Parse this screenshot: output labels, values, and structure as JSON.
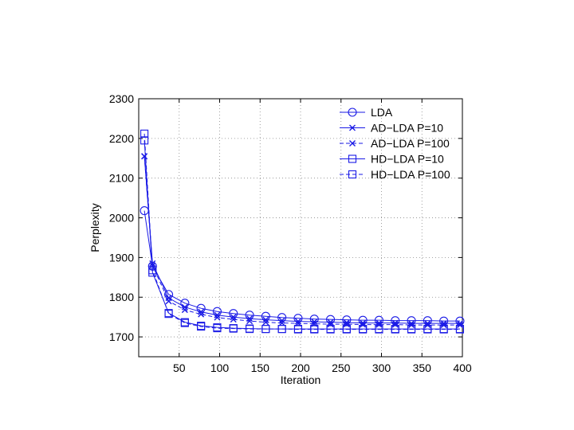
{
  "chart_data": {
    "type": "line",
    "title": "",
    "xlabel": "Iteration",
    "ylabel": "Perplexity",
    "xlim": [
      0,
      400
    ],
    "ylim": [
      1650,
      2300
    ],
    "x_ticks": [
      50,
      100,
      150,
      200,
      250,
      300,
      350,
      400
    ],
    "y_ticks": [
      1700,
      1800,
      1900,
      2000,
      2100,
      2200,
      2300
    ],
    "grid": true,
    "legend_position": "top-right",
    "x": [
      7,
      17,
      37,
      57,
      77,
      97,
      117,
      137,
      157,
      177,
      197,
      217,
      237,
      257,
      277,
      297,
      317,
      337,
      357,
      377,
      397
    ],
    "series": [
      {
        "name": "LDA",
        "line": "solid",
        "marker": "circle",
        "values": [
          2018,
          1878,
          1807,
          1785,
          1772,
          1764,
          1759,
          1755,
          1752,
          1749,
          1747,
          1745,
          1744,
          1743,
          1742,
          1742,
          1741,
          1741,
          1741,
          1740,
          1740
        ]
      },
      {
        "name": "AD−LDA P=10",
        "line": "solid",
        "marker": "x",
        "values": [
          2155,
          1885,
          1798,
          1775,
          1763,
          1755,
          1750,
          1746,
          1743,
          1741,
          1739,
          1738,
          1737,
          1736,
          1735,
          1735,
          1735,
          1734,
          1734,
          1734,
          1734
        ]
      },
      {
        "name": "AD−LDA P=100",
        "line": "dashed",
        "marker": "x",
        "values": [
          2155,
          1880,
          1790,
          1768,
          1757,
          1749,
          1744,
          1740,
          1737,
          1735,
          1734,
          1733,
          1732,
          1732,
          1731,
          1731,
          1731,
          1730,
          1730,
          1730,
          1730
        ]
      },
      {
        "name": "HD−LDA P=10",
        "line": "solid",
        "marker": "square",
        "values": [
          2195,
          1862,
          1760,
          1737,
          1728,
          1724,
          1722,
          1721,
          1720,
          1720,
          1720,
          1720,
          1720,
          1720,
          1720,
          1720,
          1720,
          1720,
          1720,
          1720,
          1720
        ]
      },
      {
        "name": "HD−LDA P=100",
        "line": "dashed",
        "marker": "square",
        "values": [
          2212,
          1868,
          1758,
          1735,
          1726,
          1722,
          1721,
          1720,
          1720,
          1720,
          1719,
          1719,
          1719,
          1719,
          1719,
          1719,
          1719,
          1719,
          1719,
          1719,
          1719
        ]
      }
    ],
    "colors": {
      "series": "#1a1ae6",
      "axis": "#000000",
      "grid": "#888888"
    }
  }
}
